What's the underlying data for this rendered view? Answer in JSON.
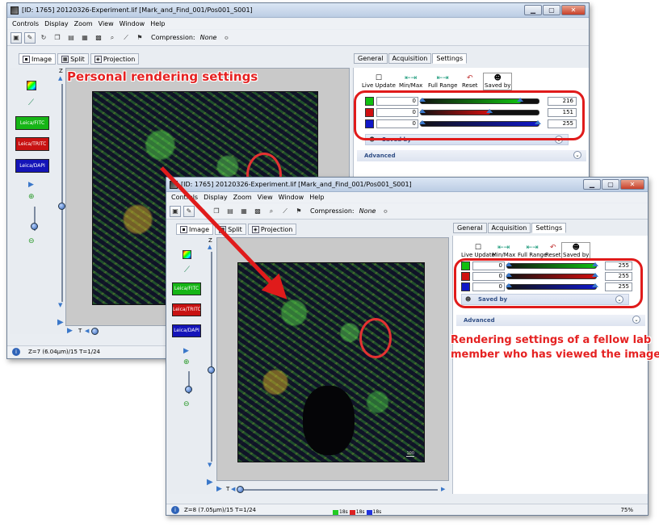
{
  "menu": [
    "Controls",
    "Display",
    "Zoom",
    "View",
    "Window",
    "Help"
  ],
  "window_controls": {
    "minimize": "▁",
    "maximize": "▢",
    "close": "✕"
  },
  "toolbar": {
    "compression_label": "Compression:",
    "compression_value": "None",
    "dropdown_arrow": "≎"
  },
  "image_tabs": [
    "Image",
    "Split",
    "Projection"
  ],
  "channels": [
    "Leica/FITC",
    "Leica/TRITC",
    "Leica/DAPI"
  ],
  "right_tabs": [
    "General",
    "Acquisition",
    "Settings"
  ],
  "rendering_tools": [
    "Live Update",
    "Min/Max",
    "Full Range",
    "Reset",
    "Saved by"
  ],
  "saved_by_label": "Saved by",
  "advanced_label": "Advanced",
  "axis": {
    "z": "Z",
    "t": "T"
  },
  "win1": {
    "title": "[ID: 1765] 20120326-Experiment.lif [Mark_and_Find_001/Pos001_S001]",
    "status": "Z=7 (6.04µm)/15 T=1/24",
    "channels": [
      {
        "color": "#10c010",
        "min": "0",
        "max": "216",
        "level": 0.85
      },
      {
        "color": "#d01010",
        "min": "0",
        "max": "151",
        "level": 0.59
      },
      {
        "color": "#1018c8",
        "min": "0",
        "max": "255",
        "level": 1.0
      }
    ]
  },
  "win2": {
    "title": "[ID: 1765] 20120326-Experiment.lif [Mark_and_Find_001/Pos001_S001]",
    "status": "Z=8 (7.05µm)/15 T=1/24",
    "zoom": "75%",
    "scale_label": "100",
    "legend": [
      {
        "color": "#22cc22",
        "label": "18s"
      },
      {
        "color": "#dd2222",
        "label": "18s"
      },
      {
        "color": "#2233dd",
        "label": "18s"
      }
    ],
    "channels": [
      {
        "color": "#10c010",
        "min": "0",
        "max": "255",
        "level": 1.0
      },
      {
        "color": "#d01010",
        "min": "0",
        "max": "255",
        "level": 1.0
      },
      {
        "color": "#1018c8",
        "min": "0",
        "max": "255",
        "level": 1.0
      }
    ]
  },
  "annotations": {
    "personal": "Personal rendering settings",
    "fellow_line1": "Rendering settings of a fellow lab",
    "fellow_line2": "member who has viewed the image"
  },
  "colors": {
    "annotation_red": "#e52222",
    "accent_blue": "#3a77c9"
  }
}
